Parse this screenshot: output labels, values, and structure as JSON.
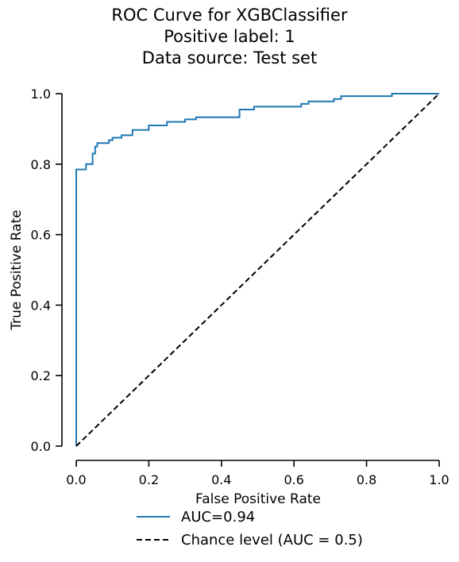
{
  "chart_data": {
    "type": "line",
    "title": [
      "ROC Curve for XGBClassifier",
      "Positive label: 1",
      "Data source: Test set"
    ],
    "xlabel": "False Positive Rate",
    "ylabel": "True Positive Rate",
    "xlim": [
      0,
      1
    ],
    "ylim": [
      0,
      1
    ],
    "xticks": [
      "0.0",
      "0.2",
      "0.4",
      "0.6",
      "0.8",
      "1.0"
    ],
    "yticks": [
      "0.0",
      "0.2",
      "0.4",
      "0.6",
      "0.8",
      "1.0"
    ],
    "grid": false,
    "legend_placement": "bottom-center",
    "series": [
      {
        "name": "AUC=0.94",
        "color": "#1f77b4",
        "style": "solid",
        "step": true,
        "x": [
          0.0,
          0.0,
          0.027,
          0.027,
          0.045,
          0.045,
          0.052,
          0.052,
          0.058,
          0.058,
          0.09,
          0.09,
          0.1,
          0.1,
          0.125,
          0.125,
          0.155,
          0.155,
          0.2,
          0.2,
          0.25,
          0.25,
          0.3,
          0.3,
          0.33,
          0.33,
          0.45,
          0.45,
          0.49,
          0.49,
          0.62,
          0.62,
          0.64,
          0.64,
          0.71,
          0.71,
          0.73,
          0.73,
          0.87,
          0.87,
          1.0
        ],
        "y": [
          0.0,
          0.785,
          0.785,
          0.8,
          0.8,
          0.83,
          0.83,
          0.85,
          0.85,
          0.86,
          0.86,
          0.868,
          0.868,
          0.875,
          0.875,
          0.882,
          0.882,
          0.897,
          0.897,
          0.91,
          0.91,
          0.92,
          0.92,
          0.927,
          0.927,
          0.933,
          0.933,
          0.955,
          0.955,
          0.963,
          0.963,
          0.971,
          0.971,
          0.978,
          0.978,
          0.985,
          0.985,
          0.993,
          0.993,
          1.0,
          1.0
        ]
      },
      {
        "name": "Chance level (AUC = 0.5)",
        "color": "#000000",
        "style": "dashed",
        "step": false,
        "x": [
          0,
          1
        ],
        "y": [
          0,
          1
        ]
      }
    ]
  }
}
